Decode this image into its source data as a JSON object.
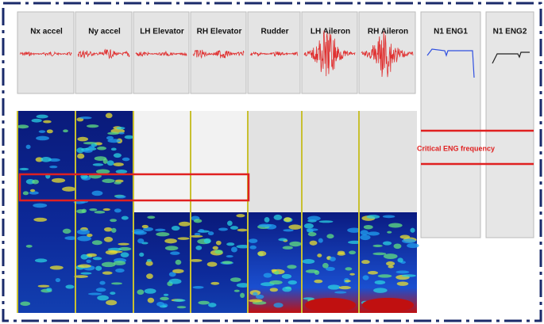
{
  "panels": [
    {
      "label": "Nx accel"
    },
    {
      "label": "Ny accel"
    },
    {
      "label": "LH Elevator"
    },
    {
      "label": "RH Elevator"
    },
    {
      "label": "Rudder"
    },
    {
      "label": "LH Aileron"
    },
    {
      "label": "RH Aileron"
    }
  ],
  "engines": [
    {
      "label": "N1 ENG1"
    },
    {
      "label": "N1 ENG2"
    }
  ],
  "annotation": "Critical ENG frequency"
}
